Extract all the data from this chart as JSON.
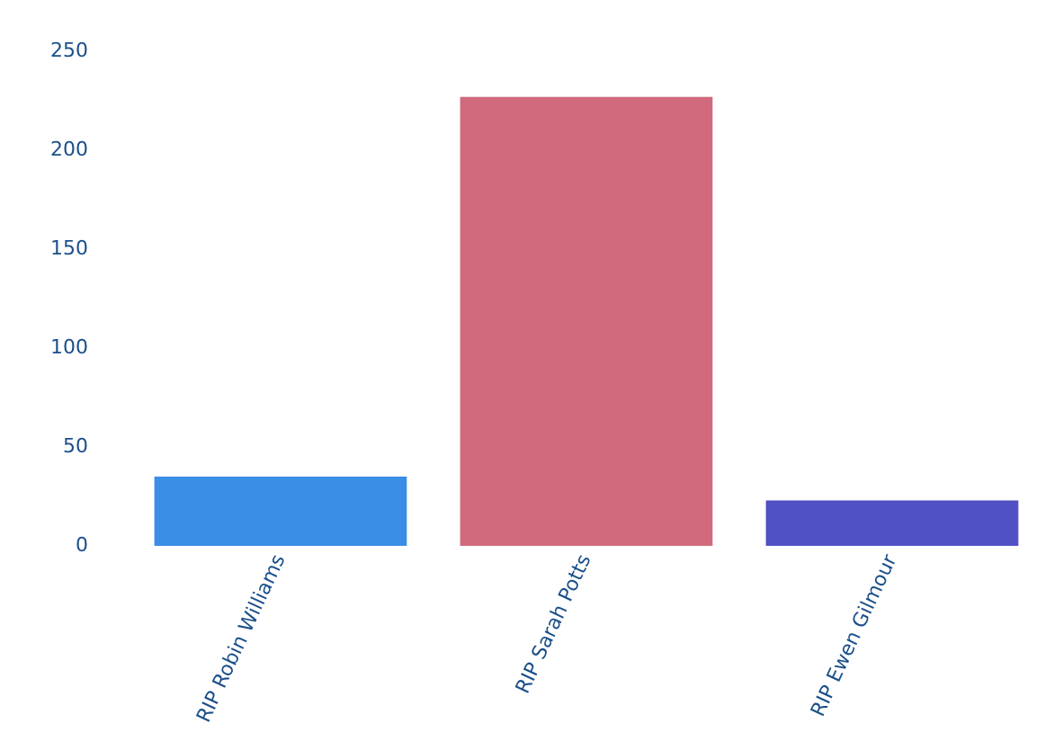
{
  "chart_data": {
    "type": "bar",
    "categories": [
      "RIP Robin Williams",
      "RIP Sarah Potts",
      "RIP Ewen Gilmour"
    ],
    "values": [
      35,
      227,
      23
    ],
    "colors": [
      "#3a8ee6",
      "#d06a7c",
      "#5150c4"
    ],
    "ylim": [
      0,
      250
    ],
    "yticks": [
      0,
      50,
      100,
      150,
      200,
      250
    ],
    "grid": false,
    "legend": false
  }
}
